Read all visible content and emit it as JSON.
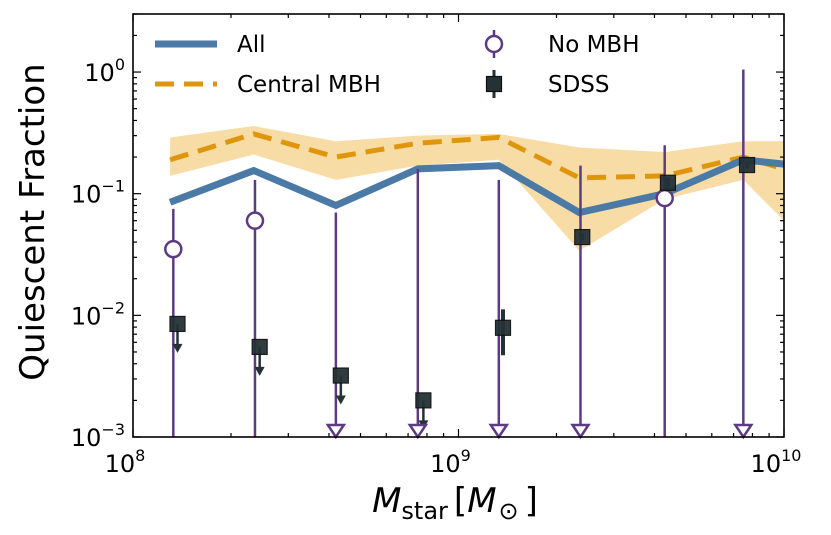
{
  "chart_data": {
    "type": "line",
    "xscale": "log",
    "yscale": "log",
    "xlim": [
      100000000.0,
      10000000000.0
    ],
    "ylim": [
      0.001,
      3
    ],
    "x_ticks": [
      {
        "base": "10",
        "exp": "8",
        "value": 100000000.0
      },
      {
        "base": "10",
        "exp": "9",
        "value": 1000000000.0
      },
      {
        "base": "10",
        "exp": "10",
        "value": 10000000000.0
      }
    ],
    "y_ticks": [
      {
        "base": "10",
        "exp": "−3",
        "value": 0.001
      },
      {
        "base": "10",
        "exp": "−2",
        "value": 0.01
      },
      {
        "base": "10",
        "exp": "−1",
        "value": 0.1
      },
      {
        "base": "10",
        "exp": "0",
        "value": 1
      }
    ],
    "ylabel": "Quiescent Fraction",
    "xlabel_main": "M",
    "xlabel_sub": "star",
    "xlabel_unit": "M",
    "xlabel_unit_sub": "⊙",
    "colors": {
      "all": "#4a7aa5",
      "central": "#e0960c",
      "band": "#f8dca6",
      "nombh": "#5d3b82",
      "sdss": "#243236"
    },
    "series": [
      {
        "name": "All",
        "style": "solid",
        "x": [
          130000000.0,
          235000000.0,
          420000000.0,
          750000000.0,
          1330000000.0,
          2350000000.0,
          4300000000.0,
          7500000000.0,
          10000000000.0
        ],
        "y": [
          0.085,
          0.155,
          0.08,
          0.16,
          0.17,
          0.07,
          0.1,
          0.19,
          0.175
        ]
      },
      {
        "name": "Central MBH",
        "style": "dashed",
        "x": [
          130000000.0,
          235000000.0,
          420000000.0,
          750000000.0,
          1330000000.0,
          2350000000.0,
          4300000000.0,
          7500000000.0,
          10000000000.0
        ],
        "y": [
          0.19,
          0.31,
          0.2,
          0.26,
          0.29,
          0.135,
          0.14,
          0.2,
          0.16
        ],
        "band_lower": [
          0.14,
          0.21,
          0.13,
          0.17,
          0.19,
          0.034,
          0.09,
          0.13,
          0.06
        ],
        "band_upper": [
          0.29,
          0.36,
          0.27,
          0.3,
          0.31,
          0.24,
          0.22,
          0.27,
          0.27
        ]
      },
      {
        "name": "No MBH",
        "marker": "open-circle",
        "points": [
          {
            "x": 133000000.0,
            "y": 0.035,
            "err_low": 0.001,
            "err_high": 0.075
          },
          {
            "x": 237000000.0,
            "y": 0.06,
            "err_low": 0.001,
            "err_high": 0.13
          },
          {
            "x": 420000000.0,
            "y": 0.001,
            "err_low": 0.001,
            "err_high": 0.07,
            "upper_limit": true
          },
          {
            "x": 750000000.0,
            "y": 0.001,
            "err_low": 0.001,
            "err_high": 0.16,
            "upper_limit": true
          },
          {
            "x": 1330000000.0,
            "y": 0.001,
            "err_low": 0.001,
            "err_high": 0.13,
            "upper_limit": true
          },
          {
            "x": 2370000000.0,
            "y": 0.001,
            "err_low": 0.001,
            "err_high": 0.17,
            "upper_limit": true
          },
          {
            "x": 4300000000.0,
            "y": 0.092,
            "err_low": 0.001,
            "err_high": 0.25
          },
          {
            "x": 7500000000.0,
            "y": 0.001,
            "err_low": 0.001,
            "err_high": 1.05,
            "upper_limit": true
          }
        ]
      },
      {
        "name": "SDSS",
        "marker": "filled-square",
        "points": [
          {
            "x": 137000000.0,
            "y": 0.0085,
            "upper_limit": true
          },
          {
            "x": 245000000.0,
            "y": 0.0055,
            "upper_limit": true
          },
          {
            "x": 435000000.0,
            "y": 0.0032,
            "upper_limit": true
          },
          {
            "x": 780000000.0,
            "y": 0.002,
            "upper_limit": true
          },
          {
            "x": 1370000000.0,
            "y": 0.0079,
            "err_low": 0.0047,
            "err_high": 0.0112
          },
          {
            "x": 2400000000.0,
            "y": 0.044,
            "err_low": 0.041,
            "err_high": 0.047
          },
          {
            "x": 4400000000.0,
            "y": 0.123,
            "err_low": 0.11,
            "err_high": 0.135
          },
          {
            "x": 7700000000.0,
            "y": 0.172,
            "err_low": 0.162,
            "err_high": 0.182
          }
        ]
      }
    ],
    "legend": {
      "placement": "top",
      "entries": [
        {
          "key": "all",
          "label": "All"
        },
        {
          "key": "central",
          "label": "Central MBH"
        },
        {
          "key": "nombh",
          "label": "No MBH"
        },
        {
          "key": "sdss",
          "label": "SDSS"
        }
      ]
    }
  }
}
